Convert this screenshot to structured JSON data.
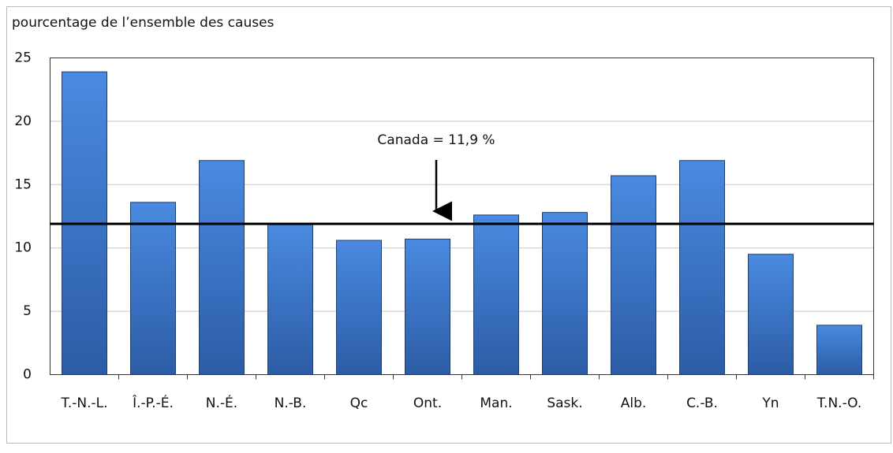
{
  "chart_data": {
    "type": "bar",
    "y_label": "pourcentage de l’ensemble des causes",
    "categories": [
      "T.-N.-L.",
      "Î.-P.-É.",
      "N.-É.",
      "N.-B.",
      "Qc",
      "Ont.",
      "Man.",
      "Sask.",
      "Alb.",
      "C.-B.",
      "Yn",
      "T.N.-O."
    ],
    "values": [
      23.9,
      13.6,
      16.9,
      11.9,
      10.6,
      10.7,
      12.6,
      12.8,
      15.7,
      16.9,
      9.5,
      3.9
    ],
    "color": "#3b73c4",
    "ylim": [
      0,
      25
    ],
    "yticks": [
      0,
      5,
      10,
      15,
      20,
      25
    ],
    "grid": true,
    "reference": {
      "value": 11.9,
      "label": "Canada = 11,9 %"
    }
  }
}
